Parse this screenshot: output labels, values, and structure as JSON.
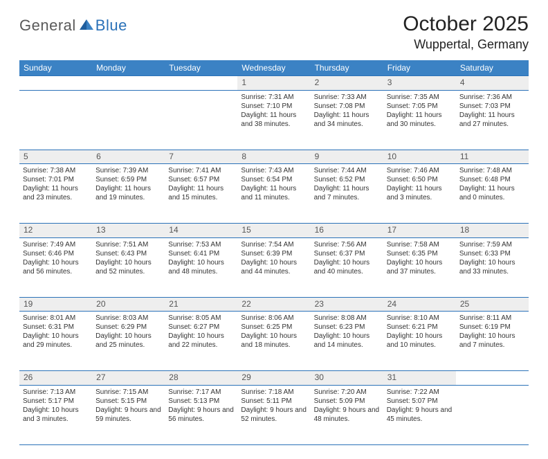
{
  "brand": {
    "general": "General",
    "blue": "Blue"
  },
  "title": "October 2025",
  "location": "Wuppertal, Germany",
  "colors": {
    "header_bg": "#3b82c4",
    "header_fg": "#ffffff",
    "rule": "#2a71b8",
    "daynum_bg": "#eeeeee",
    "text": "#333333",
    "logo_gray": "#5a5a5a",
    "logo_blue": "#2a71b8"
  },
  "weekdays": [
    "Sunday",
    "Monday",
    "Tuesday",
    "Wednesday",
    "Thursday",
    "Friday",
    "Saturday"
  ],
  "weeks": [
    {
      "daynums": [
        "",
        "",
        "",
        "1",
        "2",
        "3",
        "4"
      ],
      "cells": [
        null,
        null,
        null,
        {
          "sunrise": "7:31 AM",
          "sunset": "7:10 PM",
          "d_h": 11,
          "d_m": 38
        },
        {
          "sunrise": "7:33 AM",
          "sunset": "7:08 PM",
          "d_h": 11,
          "d_m": 34
        },
        {
          "sunrise": "7:35 AM",
          "sunset": "7:05 PM",
          "d_h": 11,
          "d_m": 30
        },
        {
          "sunrise": "7:36 AM",
          "sunset": "7:03 PM",
          "d_h": 11,
          "d_m": 27
        }
      ]
    },
    {
      "daynums": [
        "5",
        "6",
        "7",
        "8",
        "9",
        "10",
        "11"
      ],
      "cells": [
        {
          "sunrise": "7:38 AM",
          "sunset": "7:01 PM",
          "d_h": 11,
          "d_m": 23
        },
        {
          "sunrise": "7:39 AM",
          "sunset": "6:59 PM",
          "d_h": 11,
          "d_m": 19
        },
        {
          "sunrise": "7:41 AM",
          "sunset": "6:57 PM",
          "d_h": 11,
          "d_m": 15
        },
        {
          "sunrise": "7:43 AM",
          "sunset": "6:54 PM",
          "d_h": 11,
          "d_m": 11
        },
        {
          "sunrise": "7:44 AM",
          "sunset": "6:52 PM",
          "d_h": 11,
          "d_m": 7
        },
        {
          "sunrise": "7:46 AM",
          "sunset": "6:50 PM",
          "d_h": 11,
          "d_m": 3
        },
        {
          "sunrise": "7:48 AM",
          "sunset": "6:48 PM",
          "d_h": 11,
          "d_m": 0
        }
      ]
    },
    {
      "daynums": [
        "12",
        "13",
        "14",
        "15",
        "16",
        "17",
        "18"
      ],
      "cells": [
        {
          "sunrise": "7:49 AM",
          "sunset": "6:46 PM",
          "d_h": 10,
          "d_m": 56
        },
        {
          "sunrise": "7:51 AM",
          "sunset": "6:43 PM",
          "d_h": 10,
          "d_m": 52
        },
        {
          "sunrise": "7:53 AM",
          "sunset": "6:41 PM",
          "d_h": 10,
          "d_m": 48
        },
        {
          "sunrise": "7:54 AM",
          "sunset": "6:39 PM",
          "d_h": 10,
          "d_m": 44
        },
        {
          "sunrise": "7:56 AM",
          "sunset": "6:37 PM",
          "d_h": 10,
          "d_m": 40
        },
        {
          "sunrise": "7:58 AM",
          "sunset": "6:35 PM",
          "d_h": 10,
          "d_m": 37
        },
        {
          "sunrise": "7:59 AM",
          "sunset": "6:33 PM",
          "d_h": 10,
          "d_m": 33
        }
      ]
    },
    {
      "daynums": [
        "19",
        "20",
        "21",
        "22",
        "23",
        "24",
        "25"
      ],
      "cells": [
        {
          "sunrise": "8:01 AM",
          "sunset": "6:31 PM",
          "d_h": 10,
          "d_m": 29
        },
        {
          "sunrise": "8:03 AM",
          "sunset": "6:29 PM",
          "d_h": 10,
          "d_m": 25
        },
        {
          "sunrise": "8:05 AM",
          "sunset": "6:27 PM",
          "d_h": 10,
          "d_m": 22
        },
        {
          "sunrise": "8:06 AM",
          "sunset": "6:25 PM",
          "d_h": 10,
          "d_m": 18
        },
        {
          "sunrise": "8:08 AM",
          "sunset": "6:23 PM",
          "d_h": 10,
          "d_m": 14
        },
        {
          "sunrise": "8:10 AM",
          "sunset": "6:21 PM",
          "d_h": 10,
          "d_m": 10
        },
        {
          "sunrise": "8:11 AM",
          "sunset": "6:19 PM",
          "d_h": 10,
          "d_m": 7
        }
      ]
    },
    {
      "daynums": [
        "26",
        "27",
        "28",
        "29",
        "30",
        "31",
        ""
      ],
      "cells": [
        {
          "sunrise": "7:13 AM",
          "sunset": "5:17 PM",
          "d_h": 10,
          "d_m": 3
        },
        {
          "sunrise": "7:15 AM",
          "sunset": "5:15 PM",
          "d_h": 9,
          "d_m": 59
        },
        {
          "sunrise": "7:17 AM",
          "sunset": "5:13 PM",
          "d_h": 9,
          "d_m": 56
        },
        {
          "sunrise": "7:18 AM",
          "sunset": "5:11 PM",
          "d_h": 9,
          "d_m": 52
        },
        {
          "sunrise": "7:20 AM",
          "sunset": "5:09 PM",
          "d_h": 9,
          "d_m": 48
        },
        {
          "sunrise": "7:22 AM",
          "sunset": "5:07 PM",
          "d_h": 9,
          "d_m": 45
        },
        null
      ]
    }
  ],
  "labels": {
    "sunrise": "Sunrise: ",
    "sunset": "Sunset: ",
    "daylight": "Daylight: ",
    "and": " and ",
    "hours": " hours",
    "minutes": " minutes."
  }
}
